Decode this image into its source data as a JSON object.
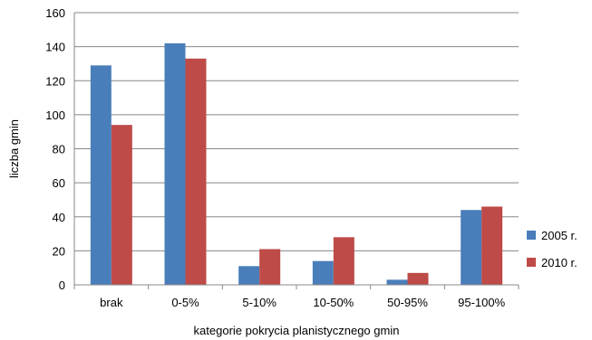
{
  "chart_data": {
    "type": "bar",
    "title": "",
    "xlabel": "kategorie pokrycia planistycznego gmin",
    "ylabel": "liczba gmin",
    "categories": [
      "brak",
      "0-5%",
      "5-10%",
      "10-50%",
      "50-95%",
      "95-100%"
    ],
    "series": [
      {
        "name": "2005 r.",
        "color": "#4a7ebb",
        "values": [
          129,
          142,
          11,
          14,
          3,
          44
        ]
      },
      {
        "name": "2010 r.",
        "color": "#be4b48",
        "values": [
          94,
          133,
          21,
          28,
          7,
          46
        ]
      }
    ],
    "ylim": [
      0,
      160
    ],
    "yticks": [
      0,
      20,
      40,
      60,
      80,
      100,
      120,
      140,
      160
    ],
    "grid": true,
    "legend_position": "right"
  }
}
